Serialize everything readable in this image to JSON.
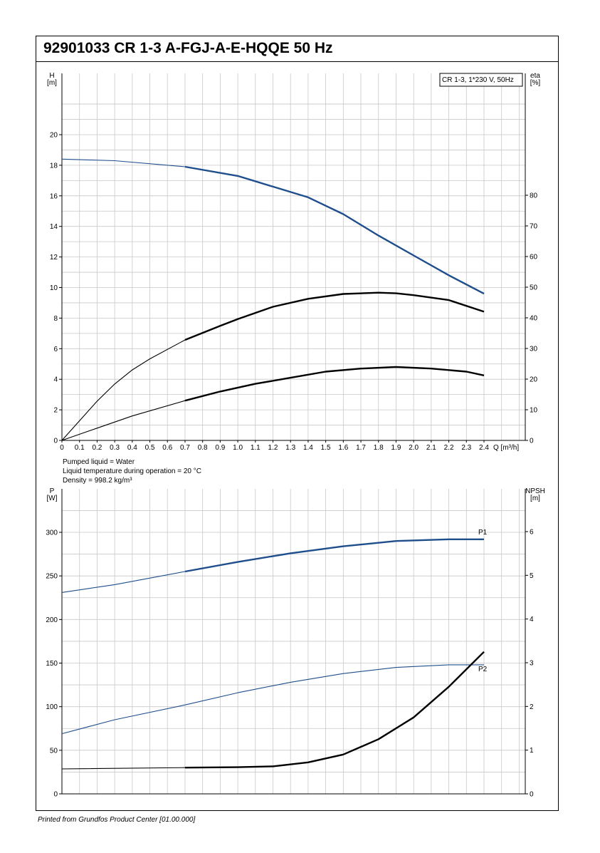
{
  "header": {
    "title": "92901033 CR 1-3 A-FGJ-A-E-HQQE 50 Hz"
  },
  "footer": {
    "text": "Printed from Grundfos Product Center [01.00.000]"
  },
  "conditions": {
    "liquid": "Pumped liquid = Water",
    "temperature": "Liquid temperature during operation = 20 °C",
    "density": "Density = 998.2 kg/m³"
  },
  "colors": {
    "blue_curve": "#1f4e8c",
    "black_curve": "#000000",
    "grid": "#c8c8c8"
  },
  "chart_data": [
    {
      "type": "line",
      "legend_box": "CR 1-3, 1*230 V, 50Hz",
      "xlabel": "Q [m³/h]",
      "xlim": [
        0,
        2.4
      ],
      "x_ticks": [
        "0",
        "0.1",
        "0.2",
        "0.3",
        "0.4",
        "0.5",
        "0.6",
        "0.7",
        "0.8",
        "0.9",
        "1.0",
        "1.1",
        "1.2",
        "1.3",
        "1.4",
        "1.5",
        "1.6",
        "1.7",
        "1.8",
        "1.9",
        "2.0",
        "2.1",
        "2.2",
        "2.3",
        "2.4"
      ],
      "y_left": {
        "label_line1": "H",
        "label_line2": "[m]",
        "ticks": [
          0,
          2,
          4,
          6,
          8,
          10,
          12,
          14,
          16,
          18,
          20
        ]
      },
      "y_right": {
        "label_line1": "eta",
        "label_line2": "[%]",
        "ticks": [
          0,
          10,
          20,
          30,
          40,
          50,
          60,
          70,
          80
        ]
      },
      "grid": true,
      "series": [
        {
          "axis": "left",
          "color": "#1f4e8c",
          "bold_from": 0.7,
          "points": [
            [
              0,
              18.4
            ],
            [
              0.3,
              18.3
            ],
            [
              0.7,
              17.9
            ],
            [
              1.0,
              17.3
            ],
            [
              1.2,
              16.6
            ],
            [
              1.4,
              15.9
            ],
            [
              1.6,
              14.8
            ],
            [
              1.8,
              13.4
            ],
            [
              2.0,
              12.1
            ],
            [
              2.2,
              10.8
            ],
            [
              2.4,
              9.6
            ]
          ]
        },
        {
          "axis": "right",
          "color": "#000000",
          "bold_from": 0.7,
          "points": [
            [
              0,
              0
            ],
            [
              0.1,
              6.4
            ],
            [
              0.2,
              12.8
            ],
            [
              0.3,
              18.4
            ],
            [
              0.4,
              23.0
            ],
            [
              0.5,
              26.6
            ],
            [
              0.7,
              32.8
            ],
            [
              0.9,
              37.4
            ],
            [
              1.0,
              39.6
            ],
            [
              1.2,
              43.6
            ],
            [
              1.4,
              46.2
            ],
            [
              1.6,
              47.8
            ],
            [
              1.8,
              48.2
            ],
            [
              1.9,
              48.0
            ],
            [
              2.0,
              47.4
            ],
            [
              2.2,
              45.8
            ],
            [
              2.4,
              42.0
            ]
          ]
        },
        {
          "axis": "left",
          "color": "#000000",
          "bold_from": 0.7,
          "points": [
            [
              0,
              0
            ],
            [
              0.2,
              0.8
            ],
            [
              0.4,
              1.6
            ],
            [
              0.7,
              2.6
            ],
            [
              0.9,
              3.2
            ],
            [
              1.1,
              3.7
            ],
            [
              1.3,
              4.1
            ],
            [
              1.5,
              4.5
            ],
            [
              1.7,
              4.7
            ],
            [
              1.9,
              4.8
            ],
            [
              2.1,
              4.7
            ],
            [
              2.3,
              4.5
            ],
            [
              2.4,
              4.25
            ]
          ]
        }
      ]
    },
    {
      "type": "line",
      "xlim": [
        0,
        2.4
      ],
      "y_left": {
        "label_line1": "P",
        "label_line2": "[W]",
        "ticks": [
          0,
          50,
          100,
          150,
          200,
          250,
          300
        ]
      },
      "y_right": {
        "label_line1": "NPSH",
        "label_line2": "[m]",
        "ticks": [
          0,
          1,
          2,
          3,
          4,
          5,
          6
        ]
      },
      "grid": true,
      "series": [
        {
          "name": "P1",
          "axis": "left",
          "color": "#1f4e8c",
          "bold_from": 0.7,
          "points": [
            [
              0,
              231
            ],
            [
              0.3,
              240
            ],
            [
              0.7,
              255
            ],
            [
              1.0,
              266
            ],
            [
              1.3,
              276
            ],
            [
              1.6,
              284
            ],
            [
              1.9,
              290
            ],
            [
              2.2,
              292
            ],
            [
              2.4,
              292
            ]
          ]
        },
        {
          "name": "P2",
          "axis": "left",
          "color": "#1f4e8c",
          "bold_from": null,
          "points": [
            [
              0,
              69
            ],
            [
              0.3,
              85
            ],
            [
              0.7,
              102
            ],
            [
              1.0,
              116
            ],
            [
              1.3,
              128
            ],
            [
              1.6,
              138
            ],
            [
              1.9,
              145
            ],
            [
              2.2,
              148
            ],
            [
              2.4,
              148
            ]
          ]
        },
        {
          "axis": "right",
          "color": "#000000",
          "bold_from": 0.7,
          "points": [
            [
              0,
              0.57
            ],
            [
              0.7,
              0.6
            ],
            [
              1.0,
              0.61
            ],
            [
              1.2,
              0.63
            ],
            [
              1.4,
              0.72
            ],
            [
              1.6,
              0.9
            ],
            [
              1.8,
              1.25
            ],
            [
              2.0,
              1.75
            ],
            [
              2.2,
              2.45
            ],
            [
              2.4,
              3.25
            ]
          ]
        }
      ]
    }
  ]
}
